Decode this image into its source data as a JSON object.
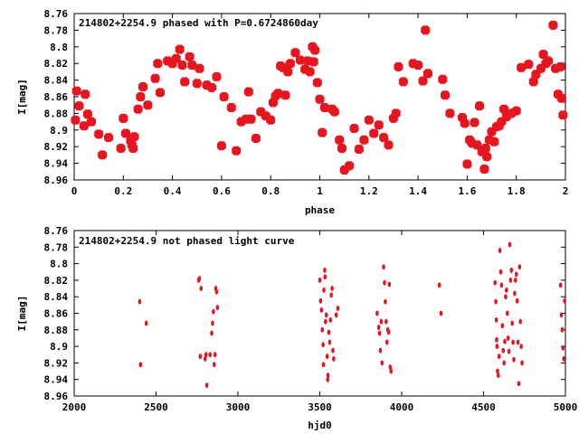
{
  "chart_data": [
    {
      "type": "scatter",
      "title": "214802+2254.9 phased with P=0.6724860day",
      "xlabel": "phase",
      "ylabel": "I[mag]",
      "xlim": [
        0,
        2
      ],
      "ylim": [
        8.96,
        8.76
      ],
      "y_inverted": true,
      "xticks": [
        "0",
        "0.2",
        "0.4",
        "0.6",
        "0.8",
        "1",
        "1.2",
        "1.4",
        "1.6",
        "1.8",
        "2"
      ],
      "yticks": [
        "8.76",
        "8.78",
        "8.8",
        "8.82",
        "8.84",
        "8.86",
        "8.88",
        "8.9",
        "8.92",
        "8.94",
        "8.96"
      ],
      "grid": false,
      "marker_color": "#e8141e",
      "points": [
        [
          0.005,
          8.888
        ],
        [
          0.01,
          8.853
        ],
        [
          0.02,
          8.871
        ],
        [
          0.04,
          8.895
        ],
        [
          0.045,
          8.857
        ],
        [
          0.055,
          8.881
        ],
        [
          0.07,
          8.89
        ],
        [
          0.1,
          8.905
        ],
        [
          0.115,
          8.93
        ],
        [
          0.14,
          8.909
        ],
        [
          0.19,
          8.922
        ],
        [
          0.2,
          8.886
        ],
        [
          0.21,
          8.904
        ],
        [
          0.23,
          8.913
        ],
        [
          0.235,
          8.918
        ],
        [
          0.24,
          8.922
        ],
        [
          0.245,
          8.908
        ],
        [
          0.26,
          8.875
        ],
        [
          0.27,
          8.86
        ],
        [
          0.28,
          8.848
        ],
        [
          0.3,
          8.87
        ],
        [
          0.33,
          8.838
        ],
        [
          0.34,
          8.82
        ],
        [
          0.35,
          8.855
        ],
        [
          0.38,
          8.817
        ],
        [
          0.4,
          8.82
        ],
        [
          0.415,
          8.814
        ],
        [
          0.43,
          8.803
        ],
        [
          0.44,
          8.822
        ],
        [
          0.45,
          8.842
        ],
        [
          0.47,
          8.812
        ],
        [
          0.48,
          8.822
        ],
        [
          0.5,
          8.844
        ],
        [
          0.51,
          8.826
        ],
        [
          0.54,
          8.846
        ],
        [
          0.56,
          8.849
        ],
        [
          0.58,
          8.836
        ],
        [
          0.6,
          8.919
        ],
        [
          0.61,
          8.86
        ],
        [
          0.64,
          8.873
        ],
        [
          0.66,
          8.925
        ],
        [
          0.68,
          8.89
        ],
        [
          0.7,
          8.887
        ],
        [
          0.71,
          8.854
        ],
        [
          0.72,
          8.887
        ],
        [
          0.74,
          8.91
        ],
        [
          0.76,
          8.878
        ],
        [
          0.78,
          8.883
        ],
        [
          0.8,
          8.888
        ],
        [
          0.81,
          8.867
        ],
        [
          0.82,
          8.859
        ],
        [
          0.83,
          8.856
        ],
        [
          0.84,
          8.823
        ],
        [
          0.85,
          8.825
        ],
        [
          0.86,
          8.858
        ],
        [
          0.87,
          8.83
        ],
        [
          0.88,
          8.82
        ],
        [
          0.9,
          8.807
        ],
        [
          0.92,
          8.816
        ],
        [
          0.94,
          8.827
        ],
        [
          0.95,
          8.817
        ],
        [
          0.96,
          8.83
        ],
        [
          0.97,
          8.8
        ],
        [
          0.975,
          8.818
        ],
        [
          0.98,
          8.804
        ],
        [
          0.99,
          8.843
        ],
        [
          1.0,
          8.863
        ],
        [
          1.01,
          8.903
        ],
        [
          1.02,
          8.873
        ],
        [
          1.05,
          8.875
        ],
        [
          1.06,
          8.878
        ],
        [
          1.08,
          8.912
        ],
        [
          1.09,
          8.922
        ],
        [
          1.1,
          8.948
        ],
        [
          1.12,
          8.943
        ],
        [
          1.14,
          8.898
        ],
        [
          1.16,
          8.923
        ],
        [
          1.18,
          8.912
        ],
        [
          1.2,
          8.888
        ],
        [
          1.22,
          8.904
        ],
        [
          1.24,
          8.894
        ],
        [
          1.26,
          8.909
        ],
        [
          1.28,
          8.918
        ],
        [
          1.3,
          8.886
        ],
        [
          1.31,
          8.88
        ],
        [
          1.32,
          8.824
        ],
        [
          1.34,
          8.842
        ],
        [
          1.38,
          8.82
        ],
        [
          1.4,
          8.822
        ],
        [
          1.42,
          8.841
        ],
        [
          1.43,
          8.78
        ],
        [
          1.44,
          8.832
        ],
        [
          1.5,
          8.839
        ],
        [
          1.51,
          8.858
        ],
        [
          1.53,
          8.88
        ],
        [
          1.58,
          8.885
        ],
        [
          1.59,
          8.892
        ],
        [
          1.6,
          8.941
        ],
        [
          1.61,
          8.912
        ],
        [
          1.62,
          8.916
        ],
        [
          1.63,
          8.891
        ],
        [
          1.64,
          8.918
        ],
        [
          1.65,
          8.871
        ],
        [
          1.66,
          8.926
        ],
        [
          1.67,
          8.947
        ],
        [
          1.675,
          8.922
        ],
        [
          1.68,
          8.932
        ],
        [
          1.69,
          8.912
        ],
        [
          1.7,
          8.902
        ],
        [
          1.71,
          8.914
        ],
        [
          1.72,
          8.896
        ],
        [
          1.73,
          8.895
        ],
        [
          1.74,
          8.89
        ],
        [
          1.75,
          8.875
        ],
        [
          1.76,
          8.884
        ],
        [
          1.78,
          8.88
        ],
        [
          1.8,
          8.877
        ],
        [
          1.82,
          8.825
        ],
        [
          1.85,
          8.821
        ],
        [
          1.87,
          8.842
        ],
        [
          1.88,
          8.833
        ],
        [
          1.9,
          8.826
        ],
        [
          1.91,
          8.809
        ],
        [
          1.92,
          8.82
        ],
        [
          1.93,
          8.817
        ],
        [
          1.95,
          8.774
        ],
        [
          1.96,
          8.826
        ],
        [
          1.97,
          8.857
        ],
        [
          1.98,
          8.824
        ],
        [
          1.985,
          8.862
        ],
        [
          1.99,
          8.882
        ]
      ]
    },
    {
      "type": "scatter",
      "title": "214802+2254.9 not phased light curve",
      "xlabel": "hjd0",
      "ylabel": "I[mag]",
      "xlim": [
        2000,
        5000
      ],
      "ylim": [
        8.96,
        8.76
      ],
      "y_inverted": true,
      "xticks": [
        "2000",
        "2500",
        "3000",
        "3500",
        "4000",
        "4500",
        "5000"
      ],
      "yticks": [
        "8.76",
        "8.78",
        "8.8",
        "8.82",
        "8.84",
        "8.86",
        "8.88",
        "8.9",
        "8.92",
        "8.94",
        "8.96"
      ],
      "grid": false,
      "marker_color": "#e8141e",
      "points": [
        [
          2400,
          8.846
        ],
        [
          2405,
          8.922
        ],
        [
          2440,
          8.872
        ],
        [
          2760,
          8.82
        ],
        [
          2765,
          8.818
        ],
        [
          2770,
          8.912
        ],
        [
          2775,
          8.83
        ],
        [
          2800,
          8.915
        ],
        [
          2805,
          8.91
        ],
        [
          2810,
          8.947
        ],
        [
          2830,
          8.91
        ],
        [
          2840,
          8.884
        ],
        [
          2845,
          8.872
        ],
        [
          2850,
          8.858
        ],
        [
          2855,
          8.922
        ],
        [
          2860,
          8.91
        ],
        [
          2865,
          8.83
        ],
        [
          2870,
          8.834
        ],
        [
          2875,
          8.853
        ],
        [
          3500,
          8.82
        ],
        [
          3505,
          8.845
        ],
        [
          3510,
          8.856
        ],
        [
          3515,
          8.88
        ],
        [
          3520,
          8.898
        ],
        [
          3522,
          8.922
        ],
        [
          3525,
          8.832
        ],
        [
          3530,
          8.808
        ],
        [
          3532,
          8.816
        ],
        [
          3535,
          8.87
        ],
        [
          3540,
          8.862
        ],
        [
          3545,
          8.912
        ],
        [
          3548,
          8.94
        ],
        [
          3550,
          8.935
        ],
        [
          3555,
          8.883
        ],
        [
          3560,
          8.895
        ],
        [
          3565,
          8.868
        ],
        [
          3570,
          8.838
        ],
        [
          3575,
          8.83
        ],
        [
          3580,
          8.905
        ],
        [
          3585,
          8.915
        ],
        [
          3600,
          8.862
        ],
        [
          3610,
          8.854
        ],
        [
          3850,
          8.86
        ],
        [
          3860,
          8.877
        ],
        [
          3865,
          8.884
        ],
        [
          3870,
          8.905
        ],
        [
          3875,
          8.87
        ],
        [
          3880,
          8.92
        ],
        [
          3890,
          8.804
        ],
        [
          3895,
          8.823
        ],
        [
          3900,
          8.846
        ],
        [
          3905,
          8.87
        ],
        [
          3910,
          8.895
        ],
        [
          3915,
          8.88
        ],
        [
          3920,
          8.883
        ],
        [
          3925,
          8.825
        ],
        [
          3930,
          8.925
        ],
        [
          3935,
          8.93
        ],
        [
          4230,
          8.826
        ],
        [
          4240,
          8.86
        ],
        [
          4570,
          8.823
        ],
        [
          4575,
          8.846
        ],
        [
          4578,
          8.868
        ],
        [
          4580,
          8.892
        ],
        [
          4582,
          8.9
        ],
        [
          4585,
          8.93
        ],
        [
          4590,
          8.935
        ],
        [
          4595,
          8.912
        ],
        [
          4600,
          8.784
        ],
        [
          4605,
          8.81
        ],
        [
          4610,
          8.826
        ],
        [
          4615,
          8.875
        ],
        [
          4620,
          8.905
        ],
        [
          4625,
          8.92
        ],
        [
          4630,
          8.894
        ],
        [
          4635,
          8.84
        ],
        [
          4640,
          8.832
        ],
        [
          4645,
          8.86
        ],
        [
          4650,
          8.89
        ],
        [
          4655,
          8.906
        ],
        [
          4660,
          8.777
        ],
        [
          4665,
          8.82
        ],
        [
          4670,
          8.808
        ],
        [
          4675,
          8.872
        ],
        [
          4680,
          8.895
        ],
        [
          4685,
          8.916
        ],
        [
          4690,
          8.836
        ],
        [
          4695,
          8.82
        ],
        [
          4700,
          8.813
        ],
        [
          4705,
          8.845
        ],
        [
          4710,
          8.895
        ],
        [
          4715,
          8.945
        ],
        [
          4720,
          8.804
        ],
        [
          4725,
          8.87
        ],
        [
          4730,
          8.9
        ],
        [
          4735,
          8.92
        ],
        [
          4970,
          8.826
        ],
        [
          4975,
          8.862
        ],
        [
          4980,
          8.88
        ],
        [
          4985,
          8.902
        ],
        [
          4990,
          8.915
        ],
        [
          4995,
          8.845
        ]
      ]
    }
  ]
}
